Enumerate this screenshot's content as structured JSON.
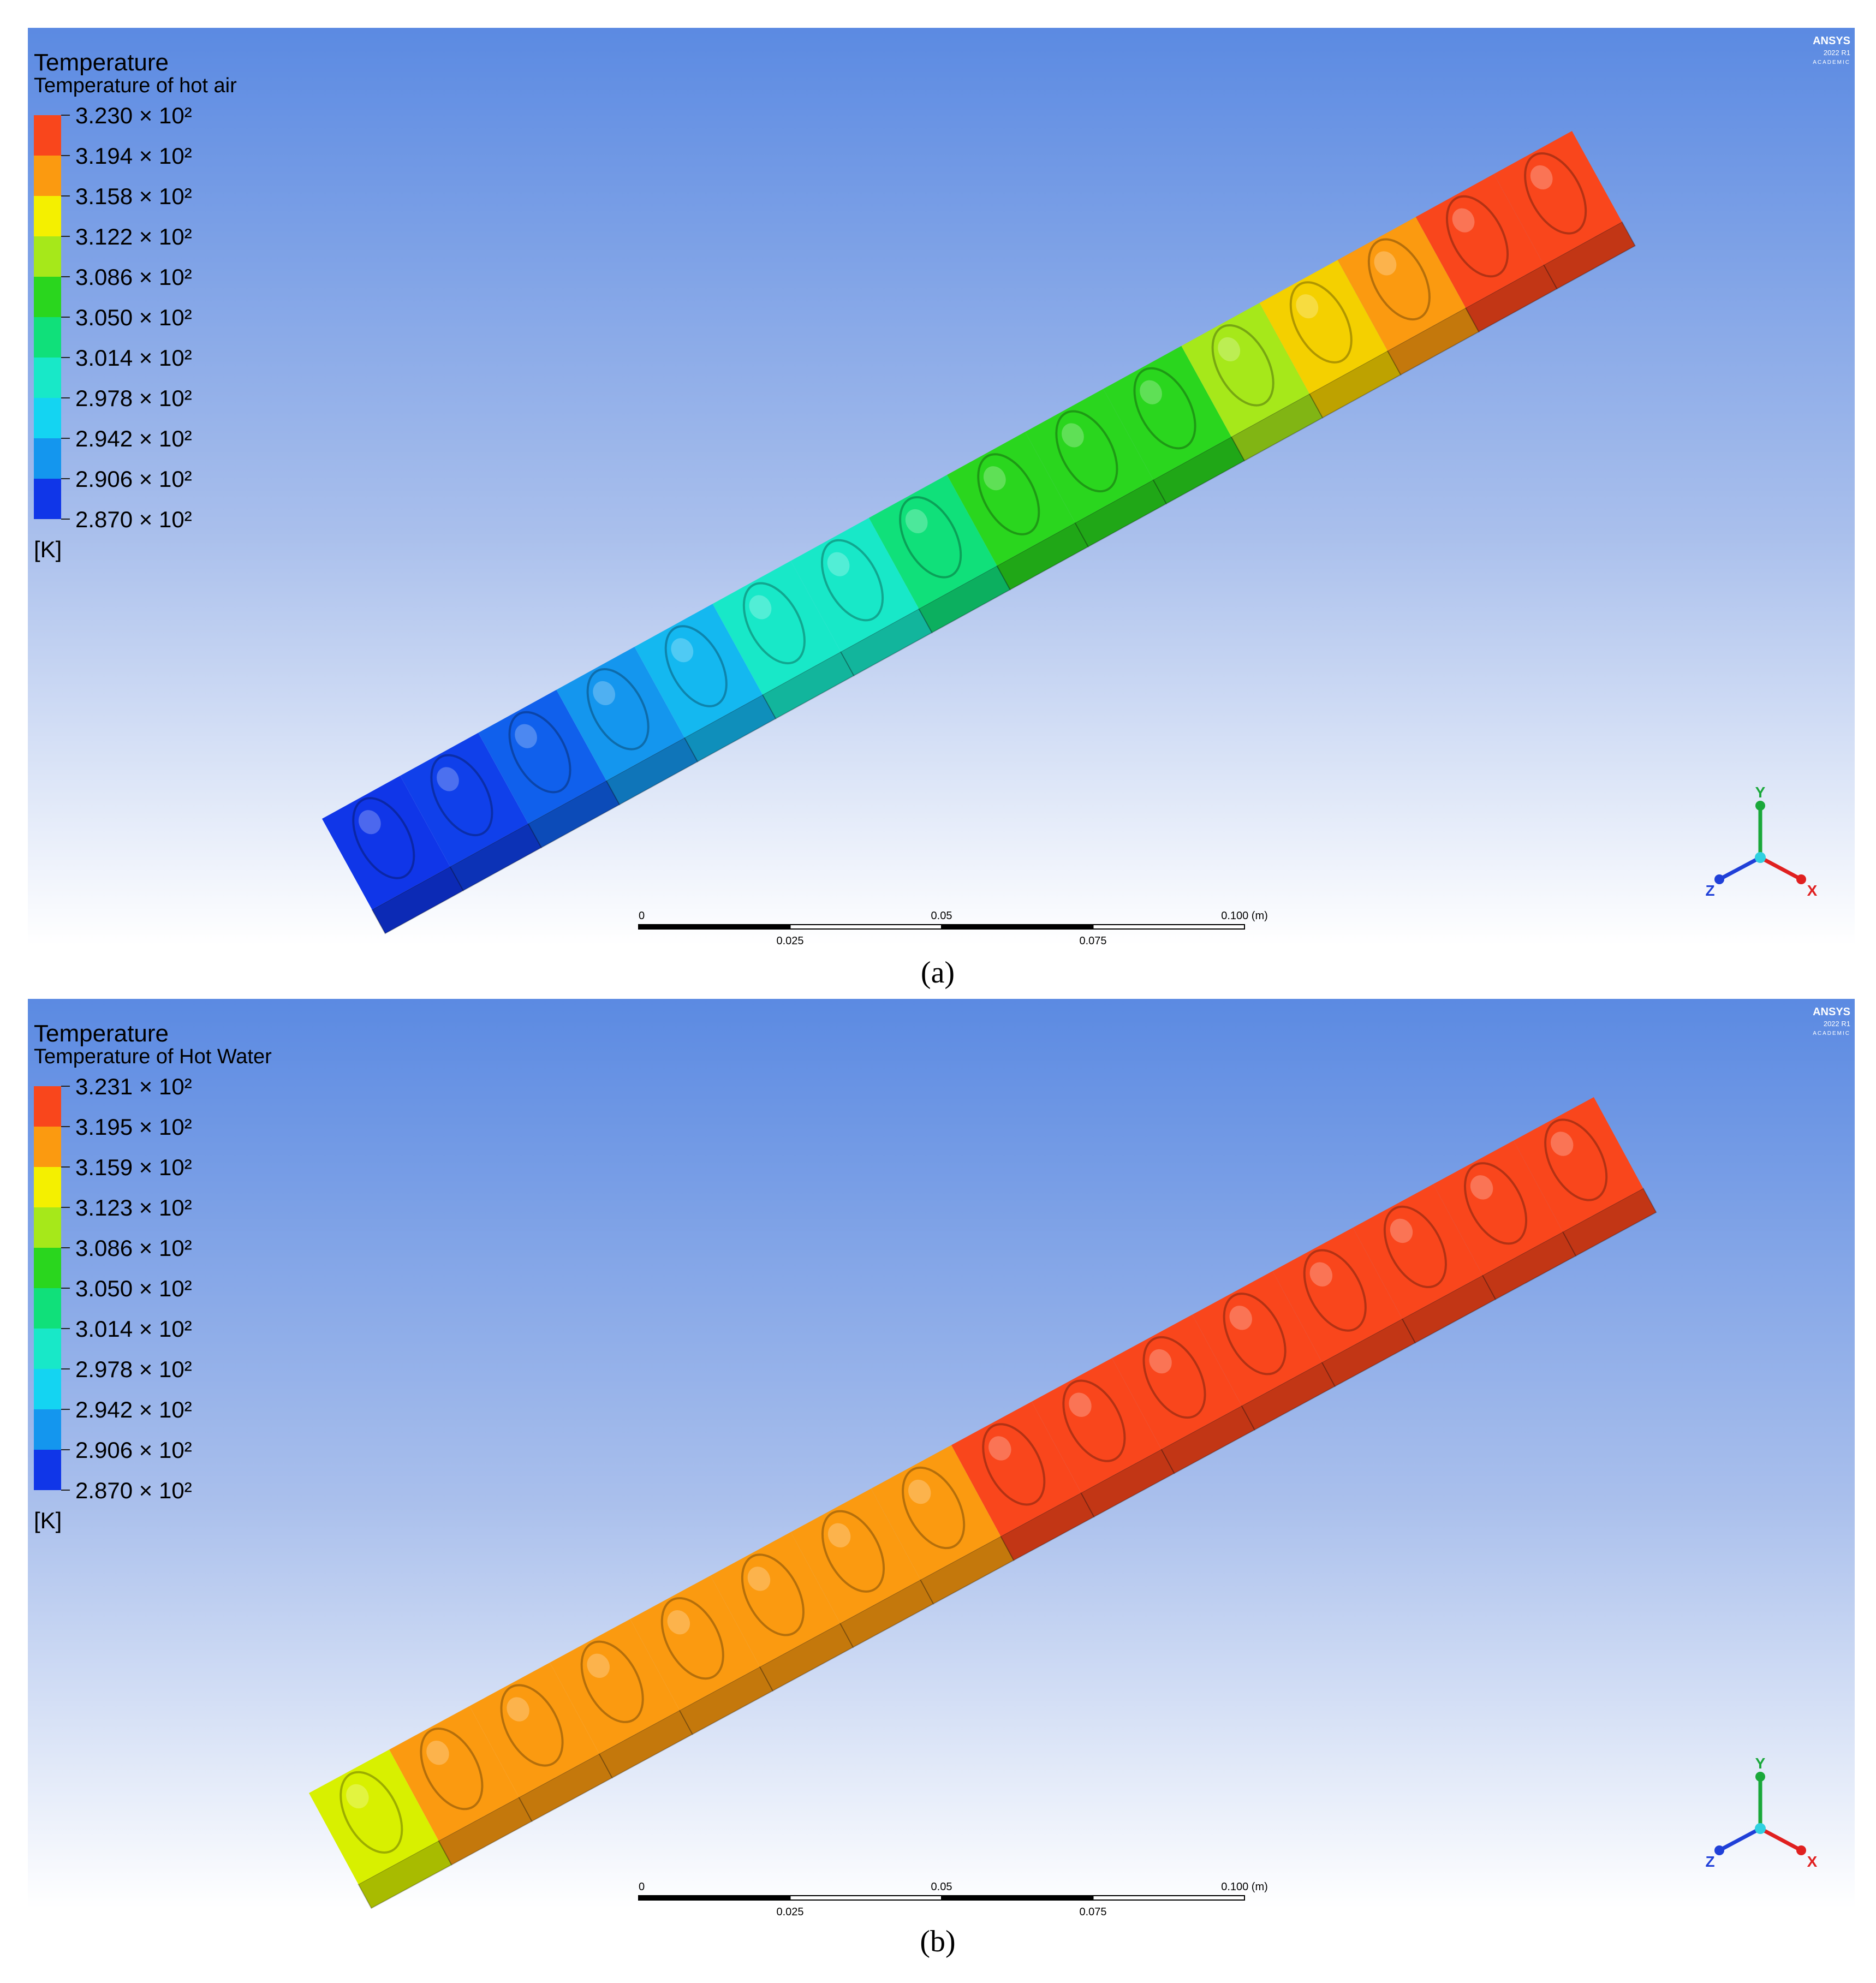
{
  "panels": [
    {
      "label": "(a)",
      "title": "Temperature",
      "subtitle": "Temperature of hot air",
      "legend_labels": [
        "3.230 × 10²",
        "3.194 × 10²",
        "3.158 × 10²",
        "3.122 × 10²",
        "3.086 × 10²",
        "3.050 × 10²",
        "3.014 × 10²",
        "2.978 × 10²",
        "2.942 × 10²",
        "2.906 × 10²",
        "2.870 × 10²"
      ],
      "legend_colors": [
        "#f9461c",
        "#fb9a10",
        "#f4f000",
        "#a6e81a",
        "#2ad61e",
        "#10e07a",
        "#18e8c8",
        "#14d4f2",
        "#1496ee",
        "#1036e8"
      ],
      "unit": "[K]",
      "scale_labels": [
        "0",
        "0.025",
        "0.05",
        "0.075",
        "0.100 (m)"
      ],
      "axes": [
        "Y",
        "Z",
        "X"
      ],
      "logo": "ANSYS",
      "logo_version": "2022 R1",
      "logo_edition": "ACADEMIC",
      "strip_colors": [
        "#1036e8",
        "#1040ea",
        "#1060ec",
        "#1496ee",
        "#14b8f0",
        "#18e8c8",
        "#18e8c8",
        "#10e07a",
        "#2ad61e",
        "#2ad61e",
        "#2ad61e",
        "#a6e81a",
        "#f4d000",
        "#fb9a10",
        "#f9461c",
        "#f9461c"
      ]
    },
    {
      "label": "(b)",
      "title": "Temperature",
      "subtitle": "Temperature of Hot Water",
      "legend_labels": [
        "3.231 × 10²",
        "3.195 × 10²",
        "3.159 × 10²",
        "3.123 × 10²",
        "3.086 × 10²",
        "3.050 × 10²",
        "3.014 × 10²",
        "2.978 × 10²",
        "2.942 × 10²",
        "2.906 × 10²",
        "2.870 × 10²"
      ],
      "legend_colors": [
        "#f9461c",
        "#fb9a10",
        "#f4f000",
        "#a6e81a",
        "#2ad61e",
        "#10e07a",
        "#18e8c8",
        "#14d4f2",
        "#1496ee",
        "#1036e8"
      ],
      "unit": "[K]",
      "scale_labels": [
        "0",
        "0.025",
        "0.05",
        "0.075",
        "0.100 (m)"
      ],
      "axes": [
        "Y",
        "Z",
        "X"
      ],
      "logo": "ANSYS",
      "logo_version": "2022 R1",
      "logo_edition": "ACADEMIC",
      "strip_colors": [
        "#d8f000",
        "#fb9a10",
        "#fb9a10",
        "#fb9a10",
        "#fb9a10",
        "#fb9a10",
        "#fb9a10",
        "#fb9a10",
        "#f9461c",
        "#f9461c",
        "#f9461c",
        "#f9461c",
        "#f9461c",
        "#f9461c",
        "#f9461c",
        "#f9461c"
      ]
    }
  ]
}
